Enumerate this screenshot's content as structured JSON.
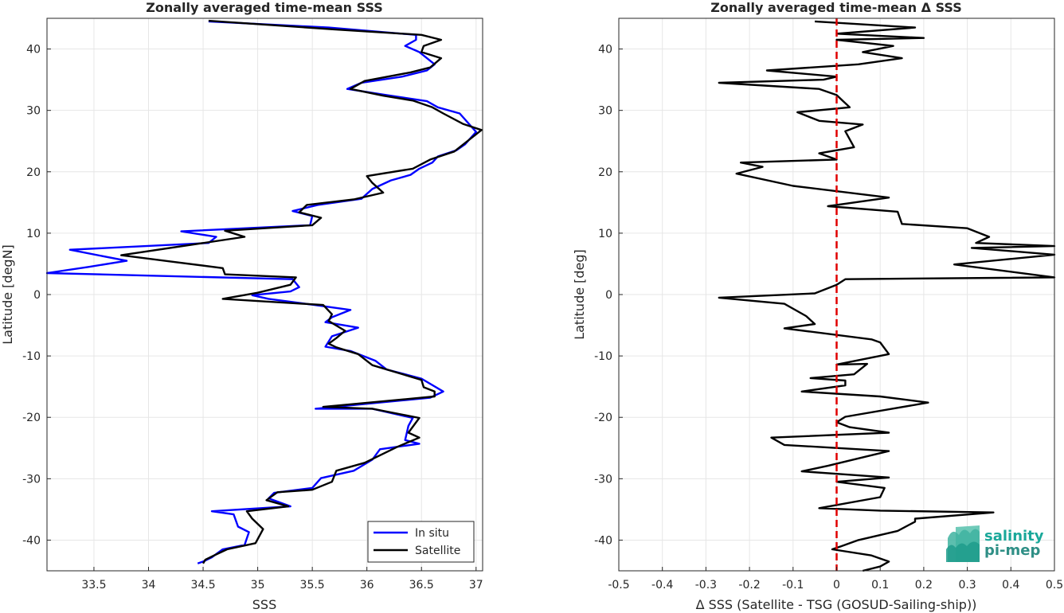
{
  "chart_data": [
    {
      "type": "line",
      "title": "Zonally averaged time-mean SSS",
      "xlabel": "SSS",
      "ylabel": "Latitude [degN]",
      "xlim": [
        33.07,
        37.06
      ],
      "ylim": [
        -45,
        45
      ],
      "xticks": [
        "33.5",
        "34",
        "34.5",
        "35",
        "35.5",
        "36",
        "36.5",
        "37"
      ],
      "yticks": [
        "-40",
        "-30",
        "-20",
        "-10",
        "0",
        "10",
        "20",
        "30",
        "40"
      ],
      "grid": true,
      "legend_placement": "bottom-right",
      "series": [
        {
          "name": "In situ",
          "color": "#0000ff",
          "points": [
            [
              34.45,
              -43.8
            ],
            [
              34.5,
              -43.5
            ],
            [
              34.58,
              -42.8
            ],
            [
              34.68,
              -41.5
            ],
            [
              34.88,
              -40.8
            ],
            [
              34.92,
              -38.7
            ],
            [
              34.82,
              -37.8
            ],
            [
              34.78,
              -35.8
            ],
            [
              34.58,
              -35.3
            ],
            [
              35.3,
              -34.5
            ],
            [
              35.1,
              -33.2
            ],
            [
              35.15,
              -32.3
            ],
            [
              35.5,
              -31.5
            ],
            [
              35.58,
              -29.9
            ],
            [
              35.88,
              -28.7
            ],
            [
              36.05,
              -26.9
            ],
            [
              36.12,
              -25.2
            ],
            [
              36.48,
              -24.3
            ],
            [
              36.35,
              -23.7
            ],
            [
              36.38,
              -21.4
            ],
            [
              36.42,
              -20.1
            ],
            [
              36.05,
              -18.6
            ],
            [
              35.53,
              -18.6
            ],
            [
              36.58,
              -16.8
            ],
            [
              36.7,
              -15.8
            ],
            [
              36.5,
              -13.7
            ],
            [
              36.18,
              -12.2
            ],
            [
              36.08,
              -10.8
            ],
            [
              35.85,
              -9.2
            ],
            [
              35.62,
              -8.5
            ],
            [
              35.68,
              -6.8
            ],
            [
              35.92,
              -5.4
            ],
            [
              35.62,
              -4.5
            ],
            [
              35.68,
              -3.7
            ],
            [
              35.85,
              -2.5
            ],
            [
              35.52,
              -1.7
            ],
            [
              35.1,
              -0.7
            ],
            [
              34.95,
              -0.1
            ],
            [
              35.3,
              0.5
            ],
            [
              35.38,
              1.2
            ],
            [
              35.32,
              2.5
            ],
            [
              33.07,
              3.5
            ],
            [
              33.45,
              4.5
            ],
            [
              33.8,
              5.5
            ],
            [
              33.28,
              7.3
            ],
            [
              34.55,
              8.4
            ],
            [
              34.62,
              9.4
            ],
            [
              34.3,
              10.3
            ],
            [
              35.48,
              11.3
            ],
            [
              35.5,
              12.8
            ],
            [
              35.32,
              13.6
            ],
            [
              35.55,
              14.6
            ],
            [
              35.95,
              15.6
            ],
            [
              36.05,
              17.2
            ],
            [
              36.22,
              18.6
            ],
            [
              36.4,
              19.5
            ],
            [
              36.48,
              20.5
            ],
            [
              36.6,
              21.5
            ],
            [
              36.65,
              22.5
            ],
            [
              36.82,
              23.5
            ],
            [
              36.9,
              24.5
            ],
            [
              37.0,
              26.5
            ],
            [
              36.95,
              27.5
            ],
            [
              36.85,
              29.5
            ],
            [
              36.65,
              30.5
            ],
            [
              36.55,
              31.5
            ],
            [
              36.18,
              32.5
            ],
            [
              35.82,
              33.5
            ],
            [
              35.95,
              34.5
            ],
            [
              36.32,
              35.5
            ],
            [
              36.55,
              36.5
            ],
            [
              36.62,
              37.5
            ],
            [
              36.55,
              38.5
            ],
            [
              36.48,
              39.5
            ],
            [
              36.35,
              40.5
            ],
            [
              36.45,
              41.5
            ],
            [
              36.45,
              42.3
            ],
            [
              35.65,
              43.5
            ],
            [
              34.55,
              44.5
            ]
          ]
        },
        {
          "name": "Satellite",
          "color": "#000000",
          "points": [
            [
              34.5,
              -43.8
            ],
            [
              34.52,
              -43.2
            ],
            [
              34.6,
              -42.5
            ],
            [
              34.72,
              -41.5
            ],
            [
              34.98,
              -40.5
            ],
            [
              35.05,
              -38.2
            ],
            [
              34.95,
              -36.5
            ],
            [
              34.9,
              -35.3
            ],
            [
              35.28,
              -34.5
            ],
            [
              35.08,
              -33.5
            ],
            [
              35.18,
              -32.2
            ],
            [
              35.5,
              -31.8
            ],
            [
              35.68,
              -30.5
            ],
            [
              35.72,
              -28.7
            ],
            [
              35.98,
              -27.4
            ],
            [
              36.28,
              -24.8
            ],
            [
              36.48,
              -23.3
            ],
            [
              36.38,
              -22.5
            ],
            [
              36.48,
              -20.1
            ],
            [
              36.05,
              -18.6
            ],
            [
              35.6,
              -18.3
            ],
            [
              36.62,
              -16.6
            ],
            [
              36.62,
              -15.8
            ],
            [
              36.52,
              -15.1
            ],
            [
              36.5,
              -13.9
            ],
            [
              36.05,
              -11.5
            ],
            [
              35.92,
              -9.7
            ],
            [
              35.72,
              -8.6
            ],
            [
              35.65,
              -8.0
            ],
            [
              35.72,
              -7.1
            ],
            [
              35.8,
              -5.9
            ],
            [
              35.65,
              -4.3
            ],
            [
              35.68,
              -3.2
            ],
            [
              35.6,
              -1.7
            ],
            [
              34.68,
              -0.7
            ],
            [
              35.0,
              0.3
            ],
            [
              35.3,
              1.6
            ],
            [
              35.35,
              2.8
            ],
            [
              34.7,
              3.3
            ],
            [
              34.68,
              4.3
            ],
            [
              34.2,
              5.4
            ],
            [
              33.75,
              6.4
            ],
            [
              34.88,
              9.4
            ],
            [
              34.7,
              10.4
            ],
            [
              35.5,
              11.3
            ],
            [
              35.58,
              12.5
            ],
            [
              35.38,
              13.4
            ],
            [
              35.45,
              14.6
            ],
            [
              35.88,
              15.5
            ],
            [
              36.15,
              16.6
            ],
            [
              36.05,
              18.2
            ],
            [
              36.0,
              19.3
            ],
            [
              36.42,
              20.5
            ],
            [
              36.58,
              22.0
            ],
            [
              36.8,
              23.3
            ],
            [
              37.05,
              26.8
            ],
            [
              36.88,
              27.8
            ],
            [
              36.7,
              29.5
            ],
            [
              36.6,
              30.5
            ],
            [
              36.42,
              31.6
            ],
            [
              36.15,
              32.4
            ],
            [
              35.85,
              33.5
            ],
            [
              35.98,
              34.8
            ],
            [
              36.4,
              36.2
            ],
            [
              36.58,
              37.0
            ],
            [
              36.68,
              38.5
            ],
            [
              36.5,
              39.5
            ],
            [
              36.52,
              40.5
            ],
            [
              36.68,
              41.5
            ],
            [
              36.5,
              42.3
            ],
            [
              35.7,
              43.2
            ],
            [
              34.55,
              44.6
            ]
          ]
        }
      ]
    },
    {
      "type": "line",
      "title": "Zonally averaged time-mean Δ SSS",
      "xlabel": "Δ SSS (Satellite - TSG (GOSUD-Sailing-ship))",
      "ylabel": "Latitude [deg]",
      "xlim": [
        -0.5,
        0.5
      ],
      "ylim": [
        -45,
        45
      ],
      "xticks": [
        "-0.5",
        "-0.4",
        "-0.3",
        "-0.2",
        "-0.1",
        "0",
        "0.1",
        "0.2",
        "0.3",
        "0.4",
        "0.5"
      ],
      "yticks": [
        "-40",
        "-30",
        "-20",
        "-10",
        "0",
        "10",
        "20",
        "30",
        "40"
      ],
      "grid": true,
      "reference_line": {
        "x": 0,
        "style": "dashed",
        "color": "#e00000"
      },
      "series": [
        {
          "color": "#000000",
          "points": [
            [
              0.06,
              -45
            ],
            [
              0.1,
              -44.3
            ],
            [
              0.12,
              -43.5
            ],
            [
              0.08,
              -42.5
            ],
            [
              -0.01,
              -41.5
            ],
            [
              0.01,
              -41.0
            ],
            [
              0.05,
              -40.0
            ],
            [
              0.14,
              -38.5
            ],
            [
              0.18,
              -37.0
            ],
            [
              0.18,
              -36.5
            ],
            [
              0.36,
              -35.5
            ],
            [
              0.1,
              -35.2
            ],
            [
              -0.04,
              -34.8
            ],
            [
              0.1,
              -33.0
            ],
            [
              0.11,
              -31.5
            ],
            [
              0.0,
              -30.5
            ],
            [
              0.12,
              -29.8
            ],
            [
              0.02,
              -29.3
            ],
            [
              -0.08,
              -28.8
            ],
            [
              -0.02,
              -27.9
            ],
            [
              0.12,
              -25.5
            ],
            [
              -0.12,
              -24.5
            ],
            [
              -0.15,
              -23.3
            ],
            [
              0.12,
              -22.5
            ],
            [
              0.03,
              -21.6
            ],
            [
              0.0,
              -20.8
            ],
            [
              0.02,
              -19.9
            ],
            [
              0.21,
              -17.6
            ],
            [
              0.1,
              -16.6
            ],
            [
              -0.08,
              -15.8
            ],
            [
              0.02,
              -14.8
            ],
            [
              0.02,
              -14.0
            ],
            [
              -0.06,
              -13.6
            ],
            [
              0.04,
              -13.0
            ],
            [
              0.07,
              -11.3
            ],
            [
              0.0,
              -11.4
            ],
            [
              0.12,
              -9.7
            ],
            [
              0.1,
              -7.8
            ],
            [
              0.08,
              -7.3
            ],
            [
              -0.12,
              -5.5
            ],
            [
              -0.05,
              -4.8
            ],
            [
              -0.07,
              -3.5
            ],
            [
              -0.12,
              -1.5
            ],
            [
              -0.27,
              -0.5
            ],
            [
              -0.05,
              0.2
            ],
            [
              0.0,
              1.6
            ],
            [
              0.02,
              2.5
            ],
            [
              0.5,
              2.8
            ],
            [
              0.27,
              4.9
            ],
            [
              0.5,
              6.5
            ],
            [
              0.31,
              7.6
            ],
            [
              0.5,
              7.9
            ],
            [
              0.32,
              8.4
            ],
            [
              0.35,
              9.4
            ],
            [
              0.3,
              10.8
            ],
            [
              0.15,
              11.5
            ],
            [
              0.14,
              13.5
            ],
            [
              -0.02,
              14.4
            ],
            [
              0.12,
              15.8
            ],
            [
              -0.1,
              17.7
            ],
            [
              -0.23,
              19.7
            ],
            [
              -0.17,
              20.8
            ],
            [
              -0.22,
              21.5
            ],
            [
              0.0,
              22.0
            ],
            [
              -0.04,
              23.0
            ],
            [
              0.04,
              24.0
            ],
            [
              0.02,
              26.6
            ],
            [
              0.06,
              27.7
            ],
            [
              -0.04,
              28.3
            ],
            [
              -0.09,
              29.7
            ],
            [
              0.03,
              30.5
            ],
            [
              0.0,
              32.5
            ],
            [
              -0.04,
              33.5
            ],
            [
              -0.27,
              34.5
            ],
            [
              -0.03,
              35.0
            ],
            [
              0.0,
              35.5
            ],
            [
              -0.16,
              36.5
            ],
            [
              0.05,
              37.5
            ],
            [
              0.15,
              38.5
            ],
            [
              0.06,
              39.5
            ],
            [
              0.13,
              40.5
            ],
            [
              0.0,
              41.5
            ],
            [
              0.2,
              41.8
            ],
            [
              0.0,
              42.5
            ],
            [
              0.18,
              43.5
            ],
            [
              -0.05,
              44.5
            ]
          ]
        }
      ]
    }
  ],
  "legend": {
    "items": [
      {
        "label": "In situ",
        "color": "#0000ff"
      },
      {
        "label": "Satellite",
        "color": "#000000"
      }
    ]
  },
  "logo": {
    "line1": "salinity",
    "line2": "pi-mep",
    "color": "#1aa89a"
  }
}
